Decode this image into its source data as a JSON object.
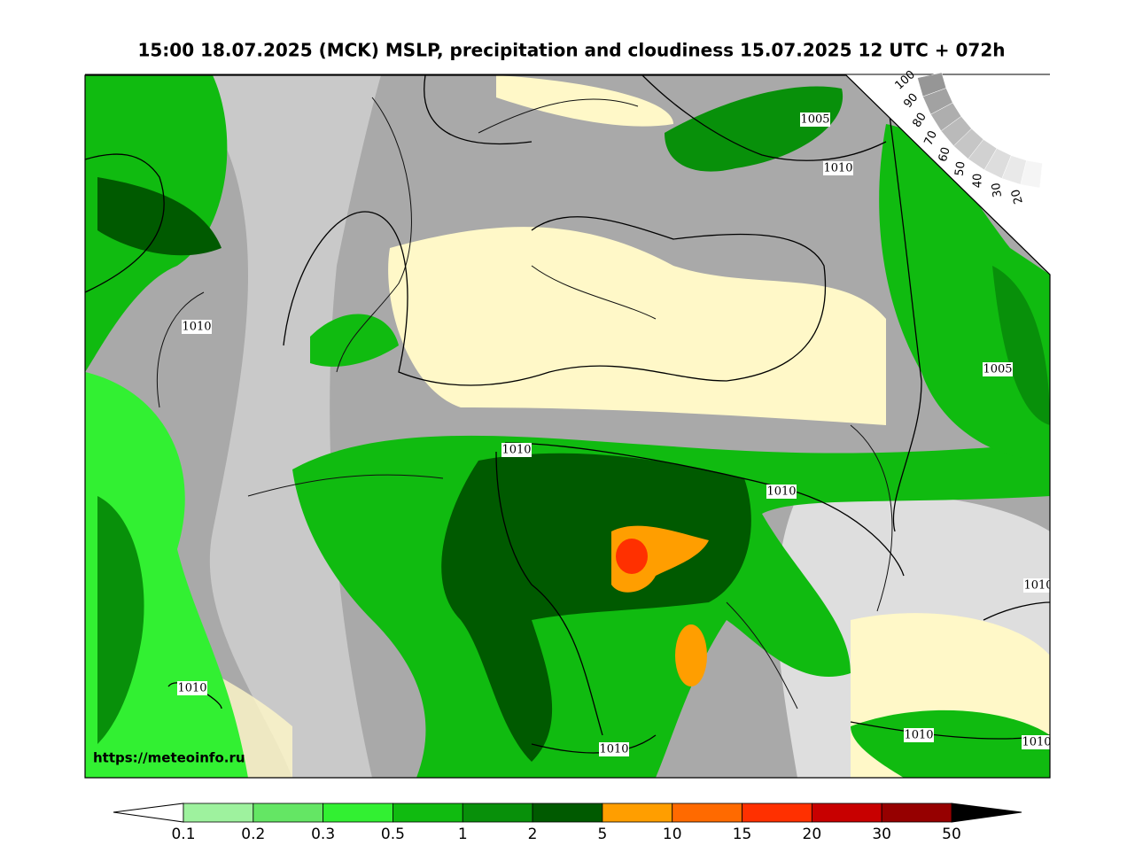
{
  "title": "15:00 18.07.2025 (MCK) MSLP, precipitation and cloudiness 15.07.2025 12 UTC + 072h",
  "map": {
    "source_url": "https://meteoinfo.ru",
    "isobar_labels": [
      1005,
      1010,
      1010,
      1005,
      1010,
      1010,
      1010,
      1010,
      1010,
      1010,
      1010
    ]
  },
  "cloudiness_scale": {
    "labels": [
      100,
      90,
      80,
      70,
      60,
      50,
      40,
      30,
      20
    ]
  },
  "precipitation_scale": {
    "labels": [
      0.1,
      0.2,
      0.3,
      0.5,
      1,
      2,
      5,
      10,
      15,
      20,
      30,
      50
    ],
    "colors": [
      "#9ef29e",
      "#64e664",
      "#32f032",
      "#10bb10",
      "#08900a",
      "#005a00",
      "#ff9e00",
      "#ff6a00",
      "#ff3000",
      "#c80000",
      "#960000"
    ]
  }
}
